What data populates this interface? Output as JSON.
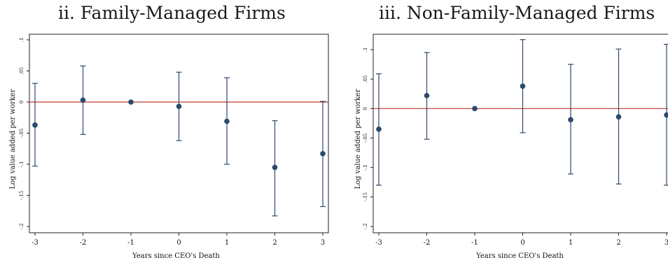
{
  "chart_data": [
    {
      "type": "scatter",
      "title": "ii. Family-Managed Firms",
      "xlabel": "Years since CEO's Death",
      "ylabel": "Log value added per worker",
      "x": [
        -3,
        -2,
        -1,
        0,
        1,
        2,
        3
      ],
      "y": [
        -0.037,
        0.003,
        0.0,
        -0.007,
        -0.031,
        -0.105,
        -0.083
      ],
      "ci_low": [
        -0.103,
        -0.052,
        null,
        -0.062,
        -0.1,
        -0.183,
        -0.168
      ],
      "ci_high": [
        0.03,
        0.058,
        null,
        0.048,
        0.039,
        -0.03,
        0.001
      ],
      "xticks": [
        "-3",
        "-2",
        "-1",
        "0",
        "1",
        "2",
        "3"
      ],
      "yticks": [
        ".1",
        ".05",
        "0",
        "-.05",
        "-.1",
        "-.15",
        "-.2"
      ],
      "xlim": [
        -3,
        3
      ],
      "ylim": [
        -0.2,
        0.1
      ],
      "reference_line_y": 0,
      "colors": {
        "points": "#2d4a6b",
        "reference_line": "#c0392b"
      }
    },
    {
      "type": "scatter",
      "title": "iii. Non-Family-Managed Firms",
      "xlabel": "Years since CEO's Death",
      "ylabel": "Log value added per worker",
      "x": [
        -3,
        -2,
        -1,
        0,
        1,
        2,
        3
      ],
      "y": [
        -0.035,
        0.022,
        0.0,
        0.038,
        -0.019,
        -0.014,
        -0.011
      ],
      "ci_low": [
        -0.13,
        -0.052,
        null,
        -0.041,
        -0.111,
        -0.128,
        -0.13
      ],
      "ci_high": [
        0.059,
        0.095,
        null,
        0.117,
        0.075,
        0.101,
        0.109
      ],
      "xticks": [
        "-3",
        "-2",
        "-1",
        "0",
        "1",
        "2",
        "3"
      ],
      "yticks": [
        ".1",
        ".05",
        "0",
        "-.05",
        "-.1",
        "-.15",
        "-.2"
      ],
      "xlim": [
        -3,
        3
      ],
      "ylim": [
        -0.2,
        0.1
      ],
      "reference_line_y": 0,
      "colors": {
        "points": "#2d4a6b",
        "reference_line": "#c0392b"
      }
    }
  ]
}
